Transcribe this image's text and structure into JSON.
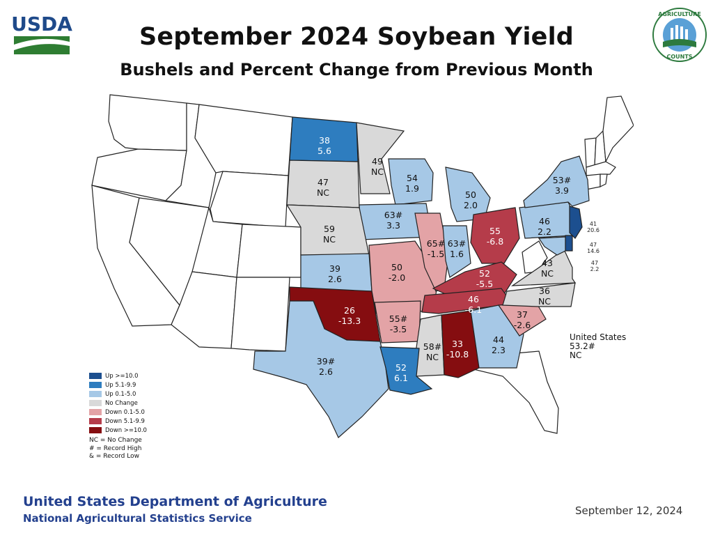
{
  "title": "September 2024 Soybean Yield",
  "subtitle": "Bushels and Percent Change from Previous Month",
  "logos": {
    "usda": "USDA",
    "agriculture_counts_top": "AGRICULTURE",
    "agriculture_counts_bottom": "COUNTS"
  },
  "colors": {
    "up10": "#1c4f8f",
    "up5": "#2e7dbf",
    "up0": "#a6c8e6",
    "nochange": "#d9d9d9",
    "down0": "#e3a3a6",
    "down5": "#b53c4a",
    "down10": "#850d10",
    "none": "#ffffff"
  },
  "legend": [
    {
      "label": "Up >=10.0",
      "color": "#1c4f8f"
    },
    {
      "label": "Up 5.1-9.9",
      "color": "#2e7dbf"
    },
    {
      "label": "Up 0.1-5.0",
      "color": "#a6c8e6"
    },
    {
      "label": "No Change",
      "color": "#d9d9d9"
    },
    {
      "label": "Down 0.1-5.0",
      "color": "#e3a3a6"
    },
    {
      "label": "Down 5.1-9.9",
      "color": "#b53c4a"
    },
    {
      "label": "Down >=10.0",
      "color": "#850d10"
    }
  ],
  "notes": [
    "NC = No Change",
    "# = Record High",
    "& = Record Low"
  ],
  "states": [
    {
      "state": "ND",
      "yield": "38",
      "change": "5.6",
      "class": "up5"
    },
    {
      "state": "MN",
      "yield": "49",
      "change": "NC",
      "class": "nochange"
    },
    {
      "state": "SD",
      "yield": "47",
      "change": "NC",
      "class": "nochange"
    },
    {
      "state": "WI",
      "yield": "54",
      "change": "1.9",
      "class": "up0"
    },
    {
      "state": "MI",
      "yield": "50",
      "change": "2.0",
      "class": "up0"
    },
    {
      "state": "NY",
      "yield": "53#",
      "change": "3.9",
      "class": "up0"
    },
    {
      "state": "NE",
      "yield": "59",
      "change": "NC",
      "class": "nochange"
    },
    {
      "state": "IA",
      "yield": "63#",
      "change": "3.3",
      "class": "up0"
    },
    {
      "state": "IL",
      "yield": "65#",
      "change": "-1.5",
      "class": "down0"
    },
    {
      "state": "IN",
      "yield": "63#",
      "change": "1.6",
      "class": "up0"
    },
    {
      "state": "OH",
      "yield": "55",
      "change": "-6.8",
      "class": "down5"
    },
    {
      "state": "PA",
      "yield": "46",
      "change": "2.2",
      "class": "up0"
    },
    {
      "state": "NJ",
      "yield": "41",
      "change": "20.6",
      "class": "up10"
    },
    {
      "state": "DE",
      "yield": "47",
      "change": "14.6",
      "class": "up10"
    },
    {
      "state": "MD",
      "yield": "47",
      "change": "2.2",
      "class": "up0"
    },
    {
      "state": "KS",
      "yield": "39",
      "change": "2.6",
      "class": "up0"
    },
    {
      "state": "MO",
      "yield": "50",
      "change": "-2.0",
      "class": "down0"
    },
    {
      "state": "KY",
      "yield": "52",
      "change": "-5.5",
      "class": "down5"
    },
    {
      "state": "VA",
      "yield": "43",
      "change": "NC",
      "class": "nochange"
    },
    {
      "state": "OK",
      "yield": "26",
      "change": "-13.3",
      "class": "down10"
    },
    {
      "state": "AR",
      "yield": "55#",
      "change": "-3.5",
      "class": "down0"
    },
    {
      "state": "TN",
      "yield": "46",
      "change": "-6.1",
      "class": "down5"
    },
    {
      "state": "NC",
      "yield": "36",
      "change": "NC",
      "class": "nochange"
    },
    {
      "state": "SC",
      "yield": "37",
      "change": "-2.6",
      "class": "down0"
    },
    {
      "state": "MS",
      "yield": "58#",
      "change": "NC",
      "class": "nochange"
    },
    {
      "state": "AL",
      "yield": "33",
      "change": "-10.8",
      "class": "down10"
    },
    {
      "state": "GA",
      "yield": "44",
      "change": "2.3",
      "class": "up0"
    },
    {
      "state": "TX",
      "yield": "39#",
      "change": "2.6",
      "class": "up0"
    },
    {
      "state": "LA",
      "yield": "52",
      "change": "6.1",
      "class": "up5"
    }
  ],
  "us_total": {
    "label": "United States",
    "yield": "53.2#",
    "change": "NC"
  },
  "footer": {
    "department": "United States Department of Agriculture",
    "service": "National Agricultural Statistics Service",
    "date": "September 12, 2024"
  }
}
